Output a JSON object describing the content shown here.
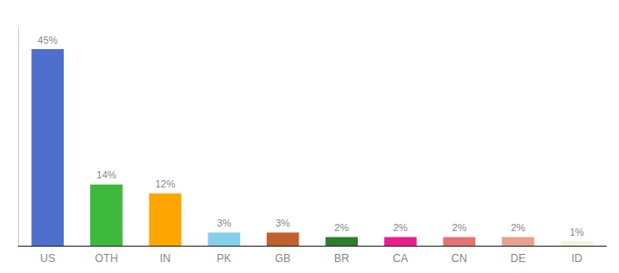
{
  "chart_data": {
    "type": "bar",
    "categories": [
      "US",
      "OTH",
      "IN",
      "PK",
      "GB",
      "BR",
      "CA",
      "CN",
      "DE",
      "ID"
    ],
    "values": [
      45,
      14,
      12,
      3,
      3,
      2,
      2,
      2,
      2,
      1
    ],
    "value_labels": [
      "45%",
      "14%",
      "12%",
      "3%",
      "3%",
      "2%",
      "2%",
      "2%",
      "2%",
      "1%"
    ],
    "colors": [
      "#4f6fcd",
      "#3db83d",
      "#ffa500",
      "#87ceeb",
      "#c0612b",
      "#2e7d32",
      "#e91e8c",
      "#e57373",
      "#e8a090",
      "#f5f0dc"
    ],
    "ylim": [
      0,
      50
    ],
    "grid": false,
    "data_labels": true,
    "tick_labels": "x"
  }
}
